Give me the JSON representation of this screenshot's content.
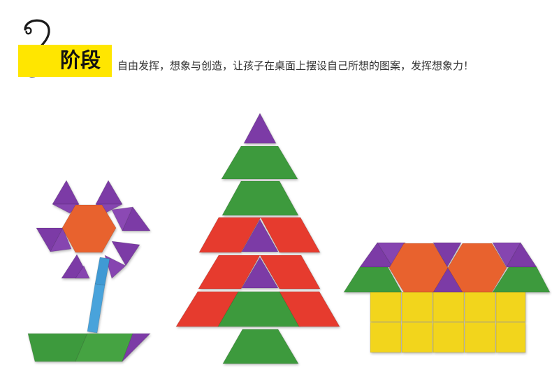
{
  "header": {
    "stage_number": "2",
    "stage_label": "阶段",
    "description": "自由发挥，想象与创造，让孩子在桌面上摆设自己所想的图案，发挥想象力！"
  },
  "colors": {
    "badge": "#ffe600",
    "purple": "#7b3aa6",
    "red": "#e63a2e",
    "orange": "#e8622f",
    "green": "#3e9a3c",
    "blue": "#3f9ad4",
    "yellow": "#f2d51e"
  },
  "figures": [
    "flower",
    "tree",
    "house"
  ]
}
